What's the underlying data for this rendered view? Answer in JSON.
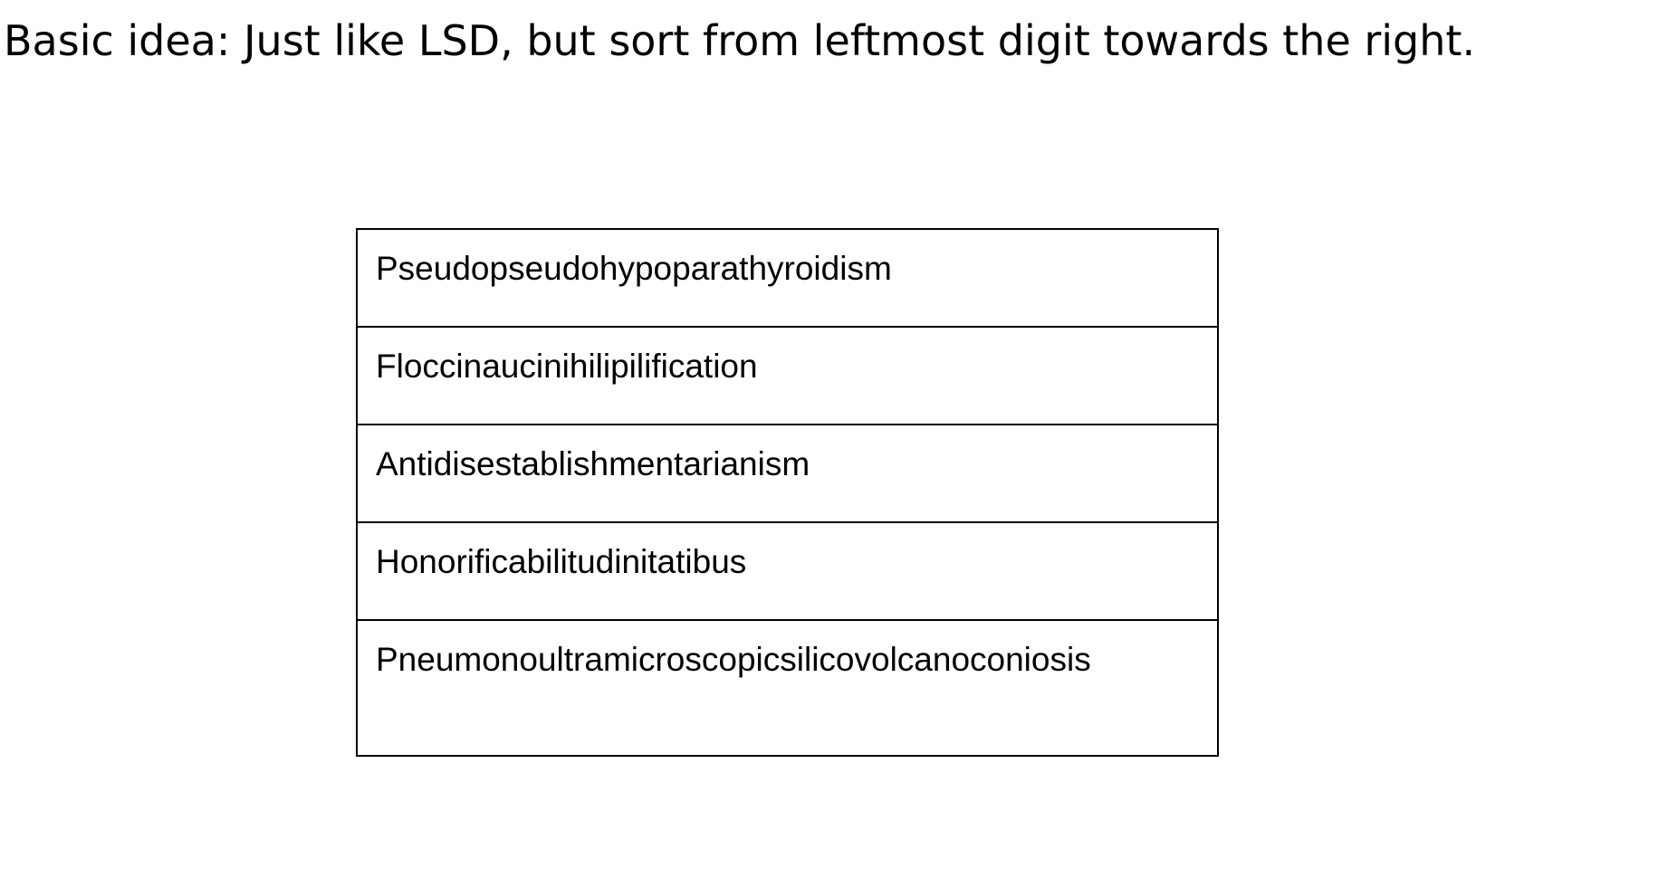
{
  "heading": "Basic idea: Just like LSD, but sort from leftmost digit towards the right.",
  "words": [
    "Pseudopseudohypoparathyroidism",
    "Floccinaucinihilipilification",
    "Antidisestablishmentarianism",
    "Honorificabilitudinitatibus",
    "Pneumonoultramicroscopicsilicovolcanoconiosis"
  ]
}
